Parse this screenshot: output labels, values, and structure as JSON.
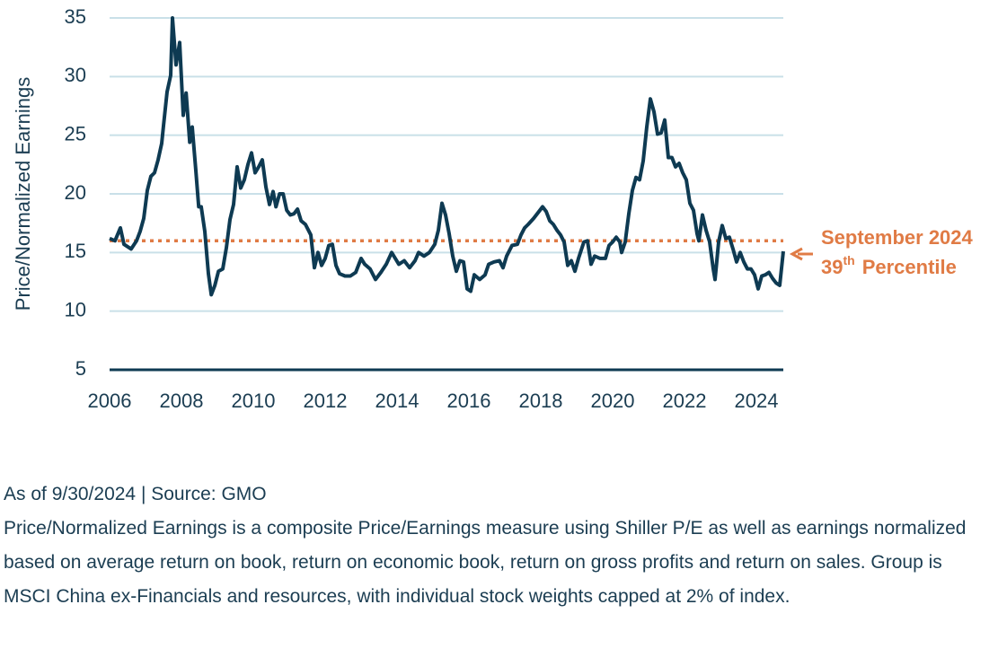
{
  "chart_data": {
    "type": "line",
    "y_label": "Price/Normalized Earnings",
    "x": [
      2006.0,
      2006.15,
      2006.3,
      2006.4,
      2006.6,
      2006.75,
      2006.85,
      2006.95,
      2007.05,
      2007.15,
      2007.25,
      2007.35,
      2007.45,
      2007.5,
      2007.6,
      2007.7,
      2007.75,
      2007.85,
      2007.95,
      2008.05,
      2008.13,
      2008.23,
      2008.3,
      2008.4,
      2008.48,
      2008.55,
      2008.65,
      2008.75,
      2008.83,
      2008.93,
      2009.03,
      2009.15,
      2009.25,
      2009.35,
      2009.45,
      2009.55,
      2009.65,
      2009.75,
      2009.85,
      2009.95,
      2010.05,
      2010.15,
      2010.25,
      2010.35,
      2010.45,
      2010.55,
      2010.63,
      2010.73,
      2010.83,
      2010.93,
      2011.03,
      2011.13,
      2011.23,
      2011.33,
      2011.45,
      2011.6,
      2011.7,
      2011.8,
      2011.9,
      2012.0,
      2012.1,
      2012.2,
      2012.3,
      2012.4,
      2012.55,
      2012.7,
      2012.85,
      2013.0,
      2013.1,
      2013.25,
      2013.4,
      2013.55,
      2013.7,
      2013.85,
      2013.95,
      2014.05,
      2014.2,
      2014.35,
      2014.5,
      2014.6,
      2014.75,
      2014.9,
      2015.05,
      2015.15,
      2015.25,
      2015.35,
      2015.45,
      2015.55,
      2015.65,
      2015.75,
      2015.85,
      2015.95,
      2016.05,
      2016.15,
      2016.3,
      2016.45,
      2016.55,
      2016.7,
      2016.85,
      2016.95,
      2017.05,
      2017.2,
      2017.35,
      2017.45,
      2017.55,
      2017.65,
      2017.8,
      2017.95,
      2018.05,
      2018.15,
      2018.25,
      2018.35,
      2018.45,
      2018.55,
      2018.65,
      2018.75,
      2018.85,
      2018.95,
      2019.05,
      2019.2,
      2019.3,
      2019.4,
      2019.5,
      2019.65,
      2019.8,
      2019.9,
      2020.0,
      2020.1,
      2020.2,
      2020.25,
      2020.35,
      2020.45,
      2020.55,
      2020.65,
      2020.75,
      2020.85,
      2020.95,
      2021.05,
      2021.15,
      2021.25,
      2021.35,
      2021.45,
      2021.55,
      2021.65,
      2021.75,
      2021.85,
      2021.95,
      2022.05,
      2022.15,
      2022.25,
      2022.35,
      2022.4,
      2022.5,
      2022.6,
      2022.7,
      2022.8,
      2022.85,
      2022.95,
      2023.05,
      2023.15,
      2023.25,
      2023.35,
      2023.45,
      2023.55,
      2023.65,
      2023.75,
      2023.85,
      2023.95,
      2024.05,
      2024.15,
      2024.25,
      2024.35,
      2024.45,
      2024.55,
      2024.65,
      2024.75
    ],
    "values": [
      16.2,
      16.0,
      17.1,
      15.7,
      15.3,
      16.0,
      16.8,
      17.9,
      20.3,
      21.5,
      21.8,
      22.9,
      24.3,
      25.8,
      28.7,
      30.1,
      35.0,
      31.0,
      32.9,
      26.7,
      28.6,
      24.4,
      25.7,
      22.0,
      18.9,
      18.9,
      16.8,
      13.2,
      11.4,
      12.2,
      13.4,
      13.6,
      15.4,
      17.8,
      19.1,
      22.3,
      20.5,
      21.2,
      22.5,
      23.5,
      21.8,
      22.3,
      22.9,
      20.6,
      19.1,
      20.2,
      18.9,
      20.0,
      20.0,
      18.6,
      18.2,
      18.3,
      18.7,
      17.7,
      17.4,
      16.5,
      13.7,
      15.0,
      13.9,
      14.5,
      15.6,
      15.7,
      13.9,
      13.2,
      13.0,
      13.0,
      13.3,
      14.5,
      14.0,
      13.6,
      12.7,
      13.3,
      14.0,
      15.0,
      14.5,
      14.0,
      14.3,
      13.7,
      14.3,
      15.0,
      14.7,
      15.0,
      15.7,
      16.9,
      19.2,
      18.2,
      16.6,
      14.7,
      13.4,
      14.3,
      14.2,
      11.9,
      11.7,
      13.1,
      12.7,
      13.1,
      14.0,
      14.2,
      14.3,
      13.7,
      14.7,
      15.6,
      15.7,
      16.5,
      17.1,
      17.4,
      17.9,
      18.5,
      18.9,
      18.5,
      17.7,
      17.4,
      16.9,
      16.5,
      15.9,
      13.9,
      14.3,
      13.4,
      14.5,
      15.9,
      16.0,
      14.0,
      14.7,
      14.5,
      14.5,
      15.6,
      15.9,
      16.3,
      15.9,
      15.0,
      15.9,
      18.3,
      20.3,
      21.4,
      21.2,
      22.8,
      25.7,
      28.1,
      27.0,
      25.1,
      25.2,
      26.3,
      23.1,
      23.1,
      22.3,
      22.6,
      21.8,
      21.2,
      19.2,
      18.6,
      16.6,
      16.0,
      18.2,
      16.9,
      15.9,
      13.6,
      12.7,
      15.9,
      17.3,
      16.2,
      16.3,
      15.3,
      14.2,
      15.0,
      14.2,
      13.6,
      13.6,
      13.1,
      11.9,
      13.0,
      13.1,
      13.3,
      12.8,
      12.4,
      12.2,
      15.1
    ],
    "color": "#0e3a52",
    "xlim": [
      2006,
      2024.75
    ],
    "xticks": [
      2006,
      2008,
      2010,
      2012,
      2014,
      2016,
      2018,
      2020,
      2022,
      2024
    ],
    "ylim": [
      5,
      35
    ],
    "yticks": [
      5,
      10,
      15,
      20,
      25,
      30,
      35
    ],
    "grid": true,
    "grid_color": "#c9e0e8",
    "reference_line": 16,
    "reference_color": "#e07b45",
    "annotation": {
      "date": "September 2024",
      "rank": "39",
      "rank_suffix": "th",
      "rank_label": "Percentile"
    }
  },
  "footer": {
    "source": "As of 9/30/2024 | Source: GMO",
    "note": "Price/Normalized Earnings is a composite Price/Earnings measure using Shiller P/E as well as earnings normalized based on average return on book, return on economic book, return on gross profits and return on sales. Group is MSCI China ex-Financials and resources, with individual stock weights capped at 2% of index."
  }
}
